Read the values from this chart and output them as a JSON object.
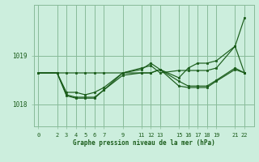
{
  "bg_color": "#cceedd",
  "grid_color": "#88bb99",
  "line_color": "#1a5c1a",
  "marker_color": "#1a5c1a",
  "title": "Graphe pression niveau de la mer (hPa)",
  "label_color": "#1a5c1a",
  "xticks": [
    0,
    2,
    3,
    4,
    5,
    6,
    7,
    9,
    11,
    12,
    13,
    15,
    16,
    17,
    18,
    19,
    21,
    22
  ],
  "yticks": [
    1018,
    1019
  ],
  "ylim": [
    1017.55,
    1020.05
  ],
  "xlim": [
    -0.5,
    23.0
  ],
  "series": [
    {
      "x": [
        0,
        2,
        3,
        4,
        5,
        6,
        7,
        9,
        11,
        12,
        13,
        15,
        16,
        17,
        18,
        19,
        21,
        22
      ],
      "y": [
        1018.65,
        1018.65,
        1018.65,
        1018.65,
        1018.65,
        1018.65,
        1018.65,
        1018.65,
        1018.75,
        1018.8,
        1018.65,
        1018.7,
        1018.7,
        1018.7,
        1018.7,
        1018.75,
        1019.2,
        1019.78
      ]
    },
    {
      "x": [
        0,
        2,
        3,
        4,
        5,
        6,
        7,
        9,
        11,
        12,
        13,
        15,
        16,
        17,
        18,
        19,
        21,
        22
      ],
      "y": [
        1018.65,
        1018.65,
        1018.25,
        1018.25,
        1018.2,
        1018.25,
        1018.35,
        1018.65,
        1018.72,
        1018.85,
        1018.72,
        1018.55,
        1018.75,
        1018.85,
        1018.85,
        1018.9,
        1019.2,
        1018.65
      ]
    },
    {
      "x": [
        0,
        2,
        3,
        4,
        5,
        6,
        7,
        9,
        11,
        12,
        13,
        15,
        16,
        17,
        18,
        19,
        21,
        22
      ],
      "y": [
        1018.65,
        1018.65,
        1018.2,
        1018.15,
        1018.15,
        1018.15,
        1018.3,
        1018.65,
        1018.65,
        1018.65,
        1018.72,
        1018.48,
        1018.38,
        1018.38,
        1018.38,
        1018.5,
        1018.75,
        1018.65
      ]
    },
    {
      "x": [
        0,
        2,
        3,
        4,
        5,
        6,
        7,
        9,
        11,
        12,
        13,
        15,
        16,
        17,
        18,
        19,
        21,
        22
      ],
      "y": [
        1018.65,
        1018.65,
        1018.18,
        1018.13,
        1018.13,
        1018.13,
        1018.3,
        1018.6,
        1018.65,
        1018.65,
        1018.72,
        1018.38,
        1018.35,
        1018.35,
        1018.35,
        1018.48,
        1018.72,
        1018.65
      ]
    }
  ]
}
